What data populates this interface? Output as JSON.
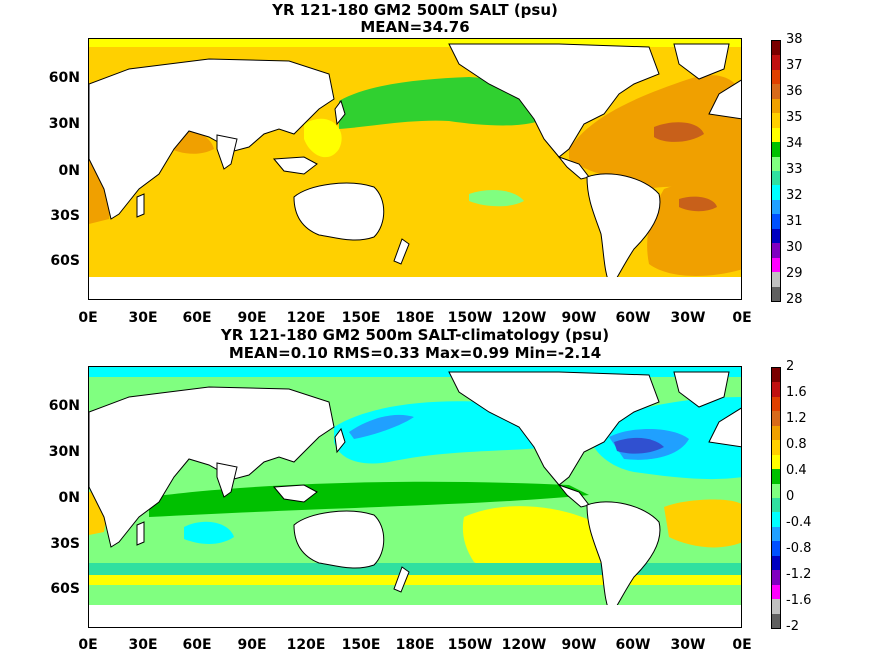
{
  "panels": [
    {
      "title_line1": "YR 121-180 GM2 500m SALT (psu)",
      "title_line2": "MEAN=34.76",
      "colorbar": {
        "ticks": [
          "38",
          "37",
          "36",
          "35",
          "34",
          "33",
          "32",
          "31",
          "30",
          "29",
          "28"
        ],
        "colors": [
          "#7a0000",
          "#c01010",
          "#e04000",
          "#d86a1a",
          "#f0a000",
          "#ffd000",
          "#ffff00",
          "#00c000",
          "#80ff80",
          "#30e0a0",
          "#00ffff",
          "#20a0ff",
          "#0050ff",
          "#0000c0",
          "#8000c0",
          "#ff00ff",
          "#c0c0c0",
          "#606060"
        ]
      }
    },
    {
      "title_line1": "YR 121-180 GM2 500m SALT-climatology (psu)",
      "title_line2": "MEAN=0.10   RMS=0.33   Max=0.99   Min=-2.14",
      "colorbar": {
        "ticks": [
          "2",
          "1.6",
          "1.2",
          "0.8",
          "0.4",
          "0",
          "-0.4",
          "-0.8",
          "-1.2",
          "-1.6",
          "-2"
        ],
        "colors": [
          "#7a0000",
          "#c01010",
          "#e04000",
          "#d86a1a",
          "#f0a000",
          "#ffd000",
          "#ffff00",
          "#00c000",
          "#80ff80",
          "#30e0a0",
          "#00ffff",
          "#20a0ff",
          "#0050ff",
          "#0000c0",
          "#8000c0",
          "#ff00ff",
          "#c0c0c0",
          "#606060"
        ]
      }
    }
  ],
  "axes": {
    "lat_labels": [
      "60N",
      "30N",
      "0N",
      "30S",
      "60S"
    ],
    "lon_labels": [
      "0E",
      "30E",
      "60E",
      "90E",
      "120E",
      "150E",
      "180E",
      "150W",
      "120W",
      "90W",
      "60W",
      "30W",
      "0E"
    ]
  },
  "colors": {
    "land": "#ffffff",
    "coast": "#000000",
    "salt_base": "#ffd000",
    "salt_high": "#f0a000",
    "salt_max": "#c8601a",
    "salt_low": "#30d030",
    "salt_top": "#ffff00",
    "diff_base": "#80ff80",
    "diff_green": "#00c000",
    "diff_pos": "#ffff00",
    "diff_pos2": "#ffd000",
    "diff_cyan": "#00ffff",
    "diff_teal": "#30e0a0",
    "diff_blue": "#20a0ff",
    "diff_dark": "#3050d0"
  }
}
